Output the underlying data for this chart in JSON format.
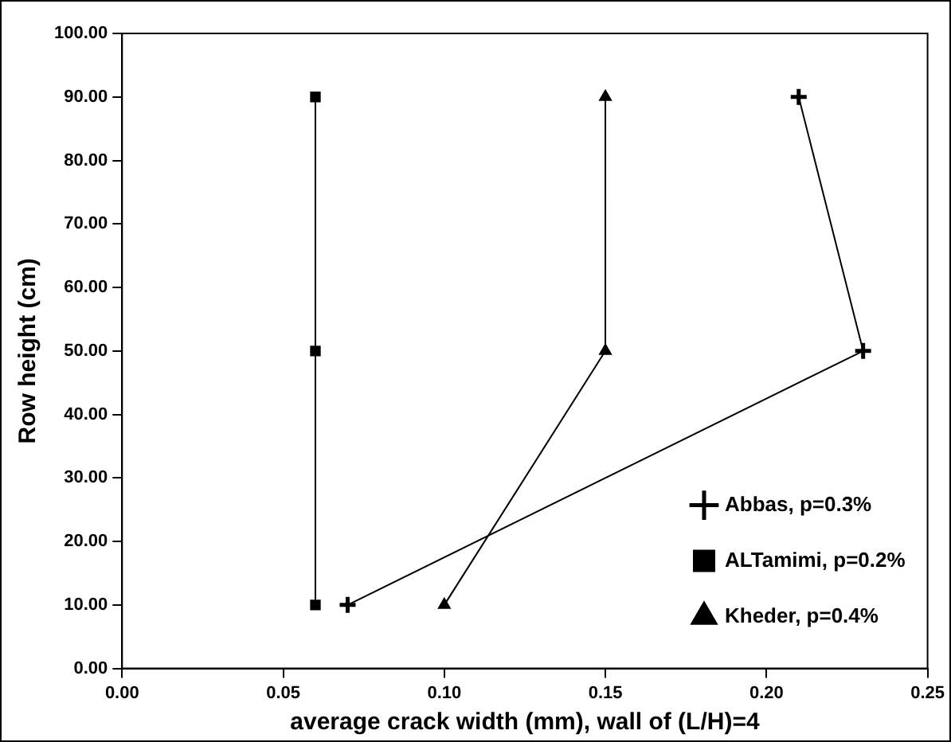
{
  "chart_data": {
    "type": "line",
    "xlabel": "average crack width (mm), wall of (L/H)=4",
    "ylabel": "Row height (cm)",
    "xlim": [
      0,
      0.25
    ],
    "xticks": [
      {
        "value": 0,
        "label": "0.00"
      },
      {
        "value": 0.05,
        "label": "0.05"
      },
      {
        "value": 0.1,
        "label": "0.10"
      },
      {
        "value": 0.15,
        "label": "0.15"
      },
      {
        "value": 0.2,
        "label": "0.20"
      },
      {
        "value": 0.25,
        "label": "0.25"
      }
    ],
    "ylim": [
      0,
      100
    ],
    "yticks": [
      {
        "value": 0,
        "label": "0.00"
      },
      {
        "value": 10,
        "label": "10.00"
      },
      {
        "value": 20,
        "label": "20.00"
      },
      {
        "value": 30,
        "label": "30.00"
      },
      {
        "value": 40,
        "label": "40.00"
      },
      {
        "value": 50,
        "label": "50.00"
      },
      {
        "value": 60,
        "label": "60.00"
      },
      {
        "value": 70,
        "label": "70.00"
      },
      {
        "value": 80,
        "label": "80.00"
      },
      {
        "value": 90,
        "label": "90.00"
      },
      {
        "value": 100,
        "label": "100.00"
      }
    ],
    "grid": false,
    "legend": "bottom right",
    "line_style": "solid",
    "series": [
      {
        "name": "Abbas, p=0.3%",
        "color": "#000000",
        "marker": "cross",
        "x": [
          0.07,
          0.23,
          0.21
        ],
        "values": [
          10,
          50,
          90
        ]
      },
      {
        "name": "ALTamimi, p=0.2%",
        "color": "#000000",
        "marker": "square",
        "x": [
          0.06,
          0.06,
          0.06
        ],
        "values": [
          10,
          50,
          90
        ]
      },
      {
        "name": "Kheder, p=0.4%",
        "color": "#000000",
        "marker": "triangle",
        "x": [
          0.1,
          0.15,
          0.15
        ],
        "values": [
          10,
          50,
          90
        ]
      }
    ]
  }
}
